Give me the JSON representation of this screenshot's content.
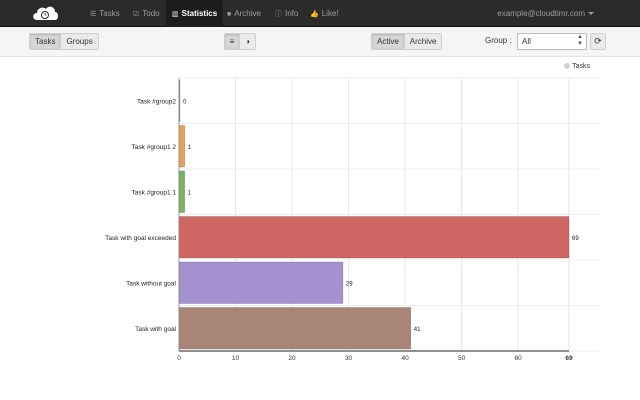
{
  "nav": {
    "items": [
      {
        "label": "Tasks",
        "icon": "list-icon",
        "glyph": "☰"
      },
      {
        "label": "Todo",
        "icon": "checkbox-icon",
        "glyph": "☑"
      },
      {
        "label": "Statistics",
        "icon": "chart-icon",
        "glyph": "▥"
      },
      {
        "label": "Archive",
        "icon": "archive-icon",
        "glyph": "■"
      },
      {
        "label": "Info",
        "icon": "info-icon",
        "glyph": "ⓘ"
      },
      {
        "label": "Like!",
        "icon": "thumbs-up-icon",
        "glyph": "👍"
      }
    ],
    "active": "Statistics",
    "user": "example@cloudtimr.com"
  },
  "toolbar": {
    "view_tabs": [
      "Tasks",
      "Groups"
    ],
    "chart_type_icons": [
      "bar-chart-icon",
      "pie-chart-icon"
    ],
    "chart_type_glyphs": [
      "≡",
      "◑"
    ],
    "status_tabs": [
      "Active",
      "Archive"
    ],
    "group_label": "Group :",
    "group_value": "All",
    "refresh_glyph": "⟳"
  },
  "colors": {
    "navbar": "#2b2b2b",
    "legend_dot": "#d0d0d0"
  },
  "chart_data": {
    "type": "bar",
    "orientation": "horizontal",
    "legend": [
      "Tasks"
    ],
    "legend_position": "top-right",
    "categories": [
      "Task #group2",
      "Task #group1 2",
      "Task #group1 1",
      "Task with goal exceeded",
      "Task without goal",
      "Task with goal"
    ],
    "values": [
      0,
      1,
      1,
      69,
      29,
      41
    ],
    "colors": [
      "#7fb1b9",
      "#e9a05a",
      "#7ab363",
      "#d06764",
      "#a591cf",
      "#a98577"
    ],
    "xticks": [
      0,
      10,
      20,
      30,
      40,
      50,
      60,
      69
    ],
    "xlim": [
      0,
      69
    ],
    "grid": true
  }
}
